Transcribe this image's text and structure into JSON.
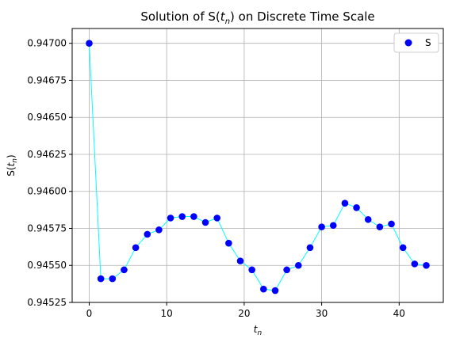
{
  "chart_data": {
    "type": "line",
    "title_prefix": "Solution of S(",
    "title_var": "t",
    "title_sub": "n",
    "title_suffix": ") on Discrete Time Scale",
    "xlabel_var": "t",
    "xlabel_sub": "n",
    "ylabel_prefix": "S(",
    "ylabel_var": "t",
    "ylabel_sub": "n",
    "ylabel_suffix": ")",
    "xlim": [
      -2.2,
      45.7
    ],
    "ylim": [
      0.94525,
      0.9471
    ],
    "xticks": [
      0,
      10,
      20,
      30,
      40
    ],
    "xtick_labels": [
      "0",
      "10",
      "20",
      "30",
      "40"
    ],
    "yticks": [
      0.94525,
      0.9455,
      0.94575,
      0.946,
      0.94625,
      0.9465,
      0.94675,
      0.947
    ],
    "ytick_labels": [
      "0.94525",
      "0.94550",
      "0.94575",
      "0.94600",
      "0.94625",
      "0.94650",
      "0.94675",
      "0.94700"
    ],
    "grid": true,
    "legend_position": "top-right",
    "series": [
      {
        "name": "S",
        "marker_color": "#0000ff",
        "line_color": "#00ffff",
        "x": [
          0,
          1.5,
          3,
          4.5,
          6,
          7.5,
          9,
          10.5,
          12,
          13.5,
          15,
          16.5,
          18,
          19.5,
          21,
          22.5,
          24,
          25.5,
          27,
          28.5,
          30,
          31.5,
          33,
          34.5,
          36,
          37.5,
          39,
          40.5,
          42,
          43.5
        ],
        "y": [
          0.947,
          0.94541,
          0.94541,
          0.94547,
          0.94562,
          0.94571,
          0.94574,
          0.94582,
          0.94583,
          0.94583,
          0.94579,
          0.94582,
          0.94565,
          0.94553,
          0.94547,
          0.94534,
          0.94533,
          0.94547,
          0.9455,
          0.94562,
          0.94576,
          0.94577,
          0.94592,
          0.94589,
          0.94581,
          0.94576,
          0.94578,
          0.94562,
          0.94551,
          0.9455
        ]
      }
    ]
  }
}
